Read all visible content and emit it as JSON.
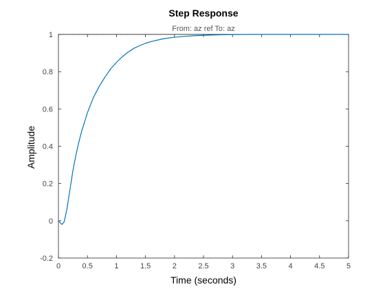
{
  "chart_data": {
    "type": "line",
    "title": "Step Response",
    "subtitle": "From: az ref  To: az",
    "xlabel": "Time (seconds)",
    "ylabel": "Amplitude",
    "xlim": [
      0,
      5
    ],
    "ylim": [
      -0.2,
      1
    ],
    "x_ticks": [
      "0",
      "0.5",
      "1",
      "1.5",
      "2",
      "2.5",
      "3",
      "3.5",
      "4",
      "4.5",
      "5"
    ],
    "y_ticks": [
      "-0.2",
      "0",
      "0.2",
      "0.4",
      "0.6",
      "0.8",
      "1"
    ],
    "grid": false,
    "steady_state": 1,
    "colors": {
      "line": "#0072bd",
      "reference": "#000000",
      "axes": "#262626"
    },
    "series": [
      {
        "x": [
          0,
          0.03,
          0.06,
          0.1,
          0.15,
          0.2,
          0.25,
          0.3,
          0.35,
          0.4,
          0.5,
          0.6,
          0.7,
          0.8,
          0.9,
          1.0,
          1.1,
          1.2,
          1.3,
          1.4,
          1.5,
          1.6,
          1.8,
          2.0,
          2.2,
          2.4,
          2.6,
          2.8,
          3.0,
          3.3,
          3.6,
          4.0,
          4.5,
          5.0
        ],
        "y": [
          0,
          -0.01,
          -0.02,
          -0.005,
          0.07,
          0.17,
          0.27,
          0.35,
          0.42,
          0.48,
          0.58,
          0.66,
          0.72,
          0.77,
          0.815,
          0.85,
          0.88,
          0.905,
          0.925,
          0.94,
          0.952,
          0.962,
          0.976,
          0.985,
          0.99,
          0.994,
          0.996,
          0.998,
          0.999,
          1.0,
          1.0,
          1.0,
          1.0,
          1.0
        ]
      }
    ]
  }
}
